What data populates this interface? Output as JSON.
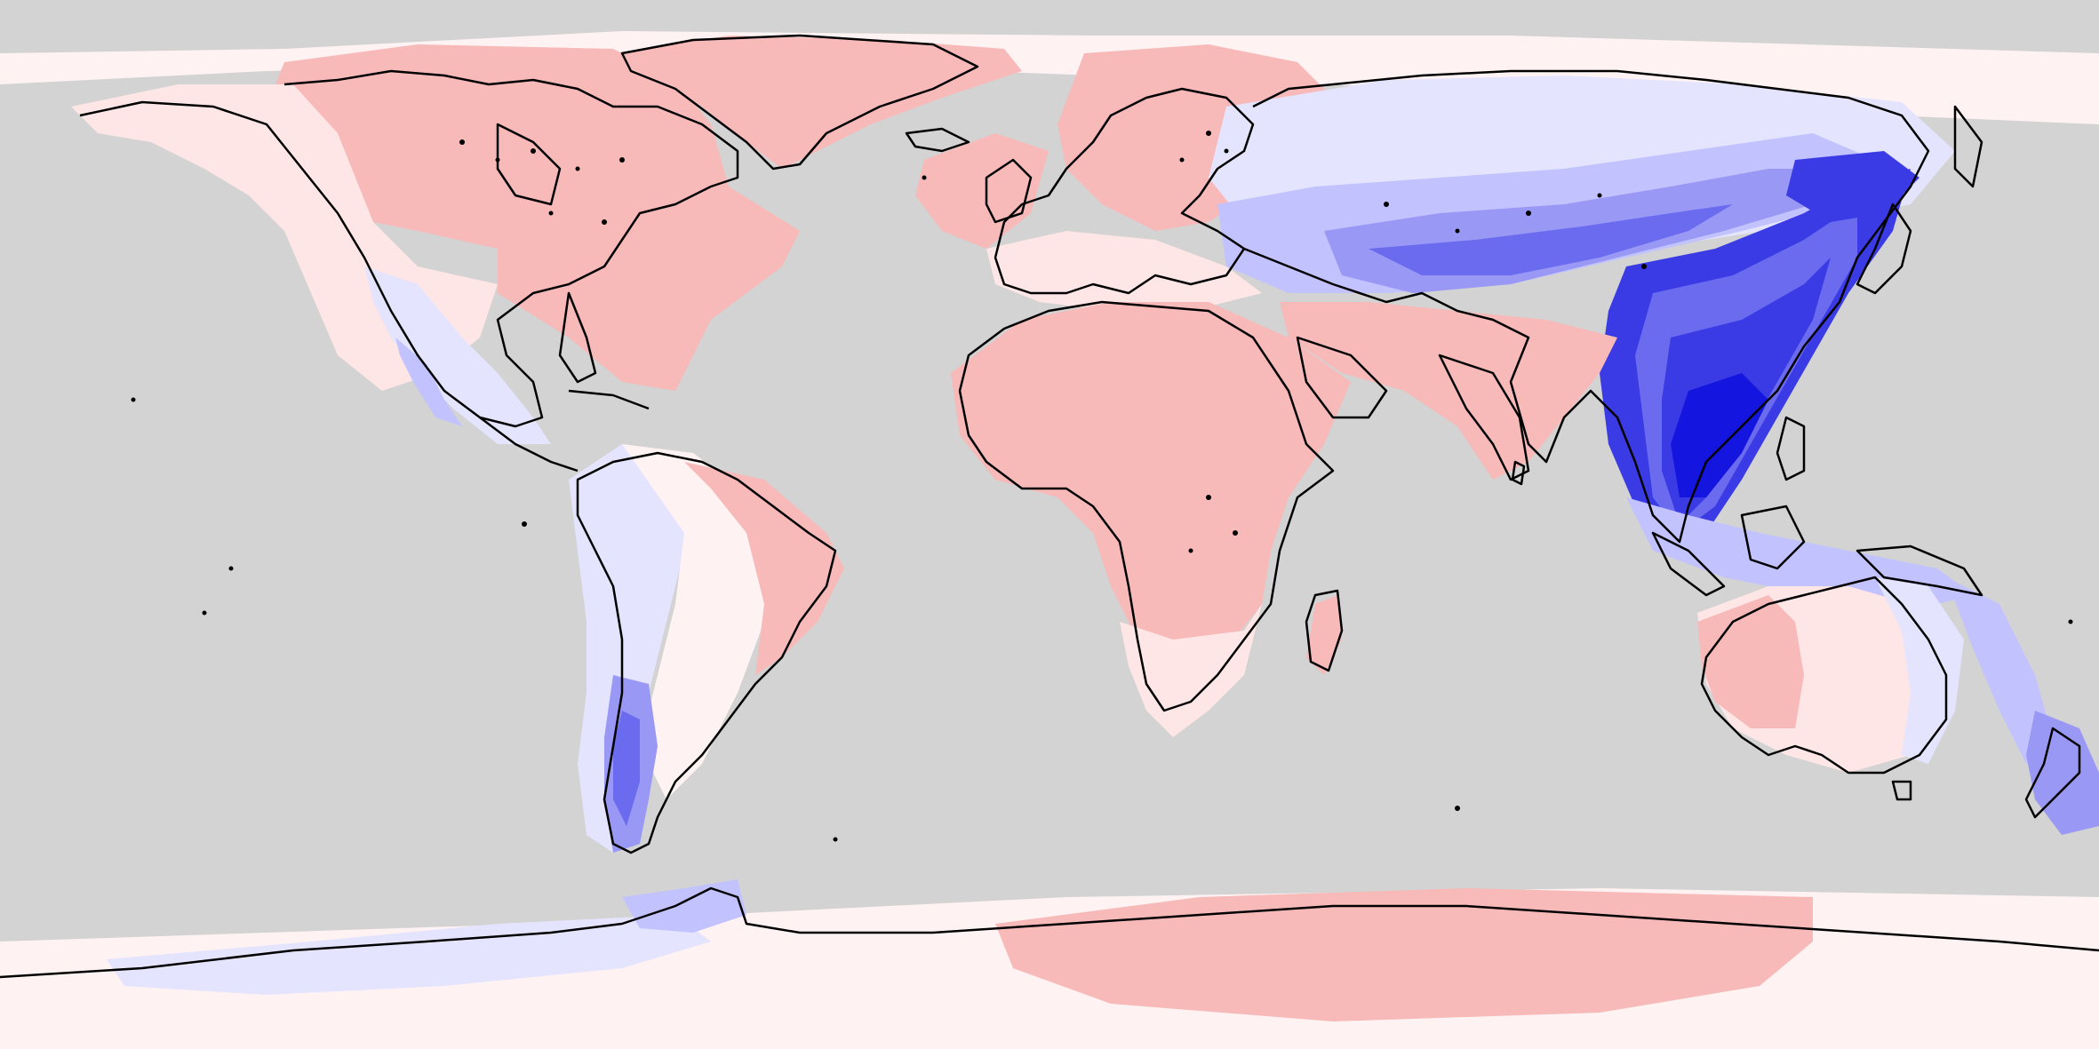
{
  "map": {
    "projection": "equirectangular",
    "extent": "global",
    "legend": "none",
    "title": "",
    "ocean_color": "#d3d3d3",
    "coastline_color": "#000000",
    "palette": {
      "red_strong": "#f8b9b9",
      "red_light": "#ffe6e6",
      "neutral": "#fff2f2",
      "blue_1": "#e4e4ff",
      "blue_2": "#c2c2ff",
      "blue_3": "#9999f5",
      "blue_4": "#6b6bf0",
      "blue_5": "#3b3be6",
      "blue_6": "#1515e0"
    },
    "regions": [
      {
        "name": "north-america-north",
        "shade": "red_strong"
      },
      {
        "name": "alaska",
        "shade": "red_light"
      },
      {
        "name": "western-usa-mexico",
        "shade": "blue_1"
      },
      {
        "name": "greenland",
        "shade": "red_strong"
      },
      {
        "name": "northern-europe",
        "shade": "red_strong"
      },
      {
        "name": "siberia",
        "shade": "blue_1"
      },
      {
        "name": "central-asia",
        "shade": "blue_2"
      },
      {
        "name": "east-asia-core",
        "shade": "blue_5"
      },
      {
        "name": "south-china-sea",
        "shade": "blue_6"
      },
      {
        "name": "africa",
        "shade": "red_strong"
      },
      {
        "name": "southern-africa",
        "shade": "red_light"
      },
      {
        "name": "south-america-west",
        "shade": "blue_1"
      },
      {
        "name": "south-america-east",
        "shade": "red_strong"
      },
      {
        "name": "patagonia",
        "shade": "blue_3"
      },
      {
        "name": "australia",
        "shade": "red_light"
      },
      {
        "name": "new-zealand",
        "shade": "blue_3"
      },
      {
        "name": "antarctica-east",
        "shade": "red_strong"
      },
      {
        "name": "antarctica-west",
        "shade": "blue_1"
      }
    ]
  }
}
